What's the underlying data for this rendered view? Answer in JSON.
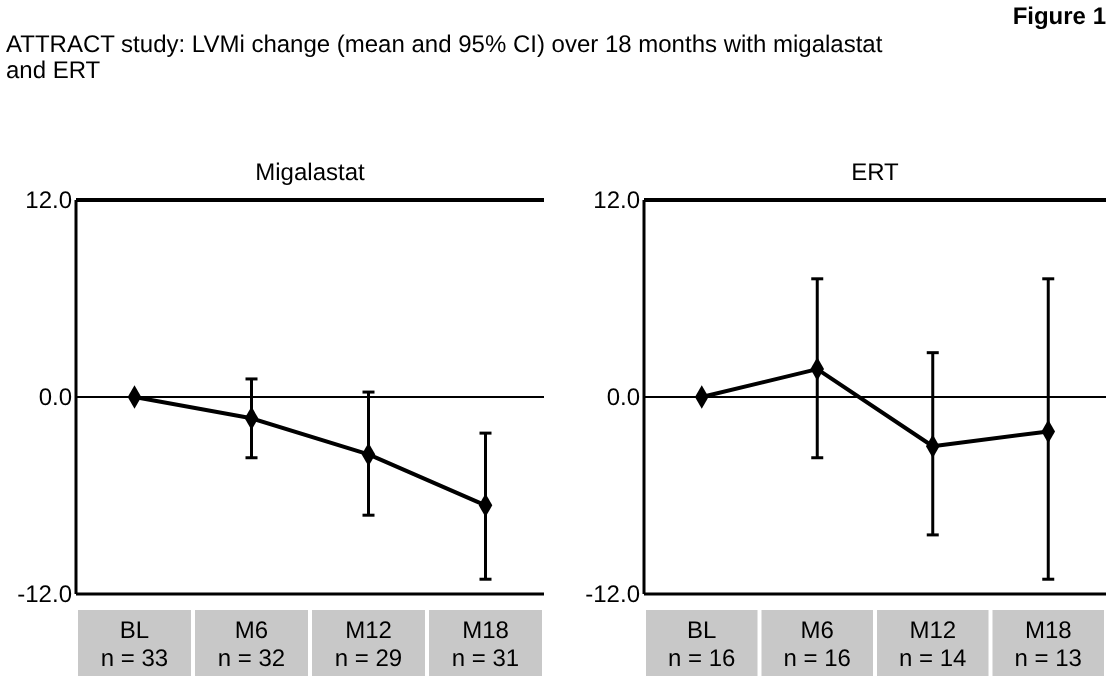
{
  "chart_data": [
    {
      "type": "line",
      "title": "Migalastat",
      "annotations": [
        "Figure 1",
        "ATTRACT study: LVMi change (mean and 95% CI) over 18 months with migalastat and ERT"
      ],
      "categories": [
        "BL\nn = 33",
        "M6\nn = 32",
        "M12\nn = 29",
        "M18\nn = 31"
      ],
      "series": [
        {
          "color": "#000000",
          "values": [
            0,
            -1.3,
            -3.5,
            -6.6
          ],
          "errors": [
            null,
            [
              -3.7,
              1.1
            ],
            [
              -7.2,
              0.3
            ],
            [
              -11.1,
              -2.2
            ]
          ]
        }
      ],
      "ylim": [
        -12,
        12
      ],
      "yticks": [
        {
          "value": -12,
          "label": "-12.0"
        },
        {
          "value": 0,
          "label": "0.0"
        },
        {
          "value": 12,
          "label": "12.0"
        }
      ],
      "ref_lines": [
        {
          "axis": "y",
          "value": 0
        }
      ],
      "marker": "diamond",
      "grid": false
    },
    {
      "type": "line",
      "title": "ERT",
      "categories": [
        "BL\nn = 16",
        "M6\nn = 16",
        "M12\nn = 14",
        "M18\nn = 13"
      ],
      "series": [
        {
          "color": "#000000",
          "values": [
            0,
            1.7,
            -3.0,
            -2.1
          ],
          "errors": [
            null,
            [
              -3.7,
              7.2
            ],
            [
              -8.4,
              2.7
            ],
            [
              -11.1,
              7.2
            ]
          ]
        }
      ],
      "ylim": [
        -12,
        12
      ],
      "yticks": [
        {
          "value": -12,
          "label": "-12.0"
        },
        {
          "value": 0,
          "label": "0.0"
        },
        {
          "value": 12,
          "label": "12.0"
        }
      ],
      "ref_lines": [
        {
          "axis": "y",
          "value": 0
        }
      ],
      "marker": "diamond",
      "grid": false
    }
  ]
}
